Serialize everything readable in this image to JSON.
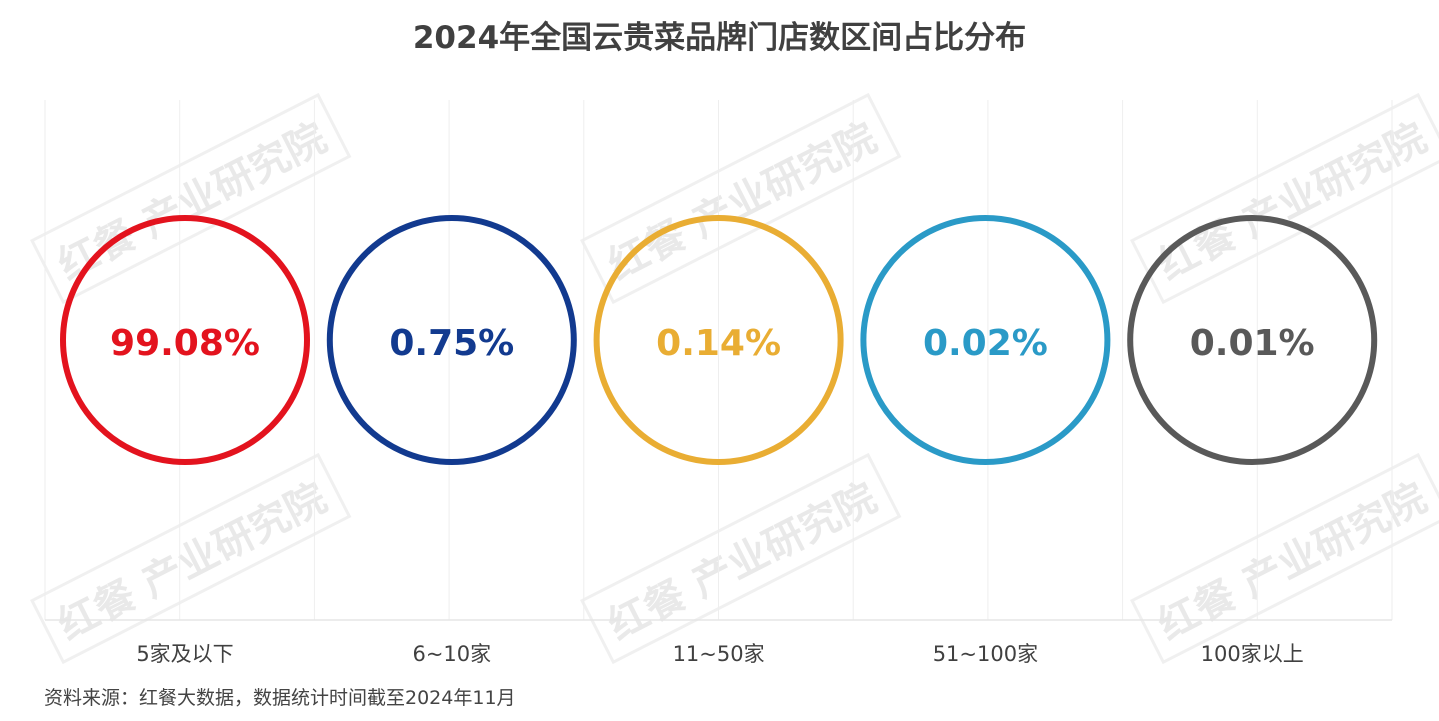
{
  "chart_data": {
    "type": "circle-percent",
    "title": "2024年全国云贵菜品牌门店数区间占比分布",
    "categories": [
      "5家及以下",
      "6~10家",
      "11~50家",
      "51~100家",
      "100家以上"
    ],
    "values": [
      99.08,
      0.75,
      0.14,
      0.02,
      0.01
    ],
    "labels": [
      "99.08%",
      "0.75%",
      "0.14%",
      "0.02%",
      "0.01%"
    ],
    "colors": [
      "#e3131e",
      "#123a8f",
      "#e9ad33",
      "#2a9ac7",
      "#595959"
    ],
    "unit": "%",
    "grid": true
  },
  "source": "资料来源：红餐大数据，数据统计时间截至2024年11月",
  "watermark": "红餐 产业研究院"
}
